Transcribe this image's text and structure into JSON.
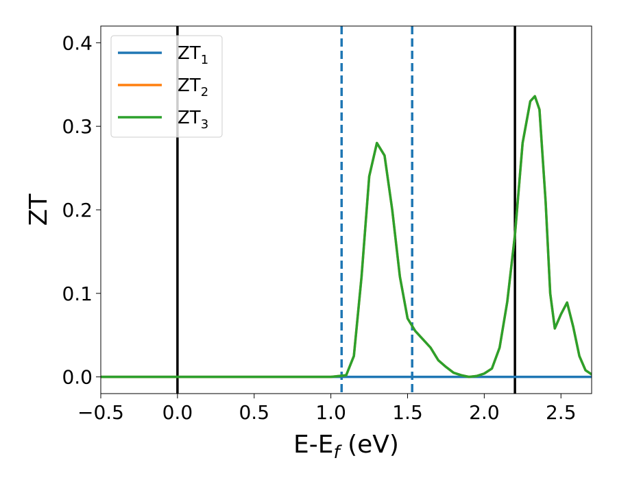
{
  "chart_data": {
    "type": "line",
    "xlabel": "E-E_f (eV)",
    "ylabel": "ZT",
    "xlim": [
      -0.5,
      2.7
    ],
    "ylim": [
      -0.02,
      0.42
    ],
    "xticks": [
      -0.5,
      0.0,
      0.5,
      1.0,
      1.5,
      2.0,
      2.5
    ],
    "xtick_labels": [
      "−0.5",
      "0.0",
      "0.5",
      "1.0",
      "1.5",
      "2.0",
      "2.5"
    ],
    "yticks": [
      0.0,
      0.1,
      0.2,
      0.3,
      0.4
    ],
    "ytick_labels": [
      "0.0",
      "0.1",
      "0.2",
      "0.3",
      "0.4"
    ],
    "grid": false,
    "legend_position": "top-left",
    "series": [
      {
        "name": "ZT",
        "subscript": "1",
        "color": "#1f77b4",
        "x": [
          -0.5,
          2.7
        ],
        "y": [
          0.0,
          0.0
        ]
      },
      {
        "name": "ZT",
        "subscript": "2",
        "color": "#ff7f0e",
        "x": [
          -0.5,
          1.0,
          1.1,
          1.15,
          1.2,
          1.25,
          1.3,
          1.35,
          1.4,
          1.45,
          1.5,
          1.55,
          1.6,
          1.65,
          1.7,
          1.75,
          1.8,
          1.85,
          1.9,
          1.95,
          2.0,
          2.05,
          2.1,
          2.15,
          2.2,
          2.25,
          2.3,
          2.33,
          2.36,
          2.4,
          2.43,
          2.46,
          2.5,
          2.54,
          2.58,
          2.62,
          2.66,
          2.7
        ],
        "y": [
          0.0,
          0.0,
          0.002,
          0.025,
          0.12,
          0.24,
          0.28,
          0.265,
          0.2,
          0.12,
          0.07,
          0.055,
          0.045,
          0.035,
          0.02,
          0.012,
          0.005,
          0.002,
          0.0,
          0.001,
          0.004,
          0.01,
          0.035,
          0.09,
          0.17,
          0.28,
          0.33,
          0.336,
          0.32,
          0.21,
          0.1,
          0.058,
          0.075,
          0.089,
          0.06,
          0.025,
          0.008,
          0.003
        ]
      },
      {
        "name": "ZT",
        "subscript": "3",
        "color": "#2ca02c",
        "x": [
          -0.5,
          1.0,
          1.1,
          1.15,
          1.2,
          1.25,
          1.3,
          1.35,
          1.4,
          1.45,
          1.5,
          1.55,
          1.6,
          1.65,
          1.7,
          1.75,
          1.8,
          1.85,
          1.9,
          1.95,
          2.0,
          2.05,
          2.1,
          2.15,
          2.2,
          2.25,
          2.3,
          2.33,
          2.36,
          2.4,
          2.43,
          2.46,
          2.5,
          2.54,
          2.58,
          2.62,
          2.66,
          2.7
        ],
        "y": [
          0.0,
          0.0,
          0.002,
          0.025,
          0.12,
          0.24,
          0.28,
          0.265,
          0.2,
          0.12,
          0.07,
          0.055,
          0.045,
          0.035,
          0.02,
          0.012,
          0.005,
          0.002,
          0.0,
          0.001,
          0.004,
          0.01,
          0.035,
          0.09,
          0.17,
          0.28,
          0.33,
          0.336,
          0.32,
          0.21,
          0.1,
          0.058,
          0.075,
          0.089,
          0.06,
          0.025,
          0.008,
          0.003
        ]
      }
    ],
    "vlines": [
      {
        "x": 0.0,
        "style": "solid",
        "color": "#000000"
      },
      {
        "x": 1.07,
        "style": "dashed",
        "color": "#1f77b4"
      },
      {
        "x": 1.53,
        "style": "dashed",
        "color": "#1f77b4"
      },
      {
        "x": 2.2,
        "style": "solid",
        "color": "#000000"
      }
    ]
  }
}
